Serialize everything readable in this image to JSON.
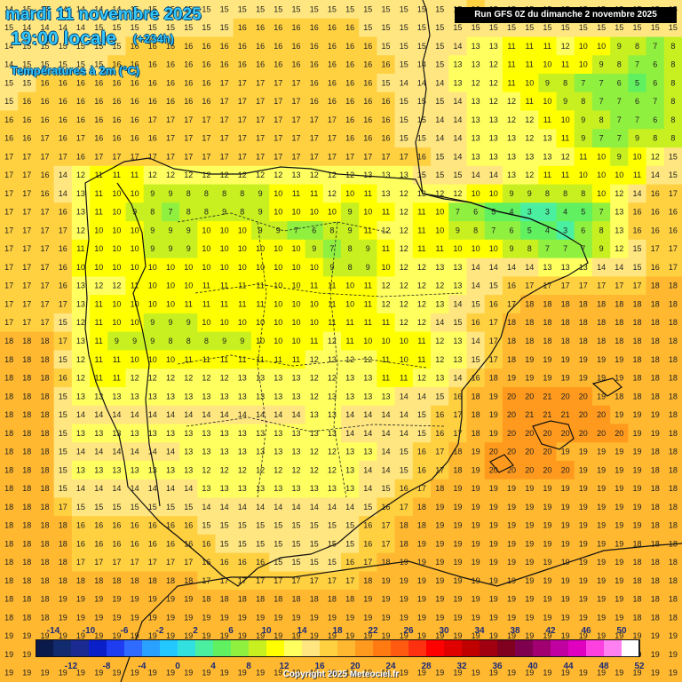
{
  "header": {
    "date": "mardi 11 novembre 2025",
    "time": "19:00 locale",
    "lead": "(+234h)",
    "variable": "Températures à 2m (°C)",
    "run": "Run GFS 0Z du dimanche 2 novembre 2025"
  },
  "copyright": "Copyright 2025 Meteociel.fr",
  "legend": {
    "unit": "°C",
    "step": 2,
    "min": -14,
    "max": 52,
    "top_labels": [
      "-14",
      "-10",
      "-6",
      "-2",
      "2",
      "6",
      "10",
      "14",
      "18",
      "22",
      "26",
      "30",
      "34",
      "38",
      "42",
      "46",
      "50"
    ],
    "bottom_labels": [
      "-12",
      "-8",
      "-4",
      "0",
      "4",
      "8",
      "12",
      "16",
      "20",
      "24",
      "28",
      "32",
      "36",
      "40",
      "44",
      "48",
      "52"
    ],
    "colors": [
      "#0a1a4a",
      "#122a6e",
      "#1a2a90",
      "#0a1fc8",
      "#1e3cf0",
      "#2f6bff",
      "#2aa0ff",
      "#22c8ff",
      "#33e0e0",
      "#4af0a0",
      "#60f060",
      "#90f040",
      "#c8f020",
      "#ffff00",
      "#ffff60",
      "#ffe680",
      "#ffd040",
      "#ffb830",
      "#ff9a1e",
      "#ff7a10",
      "#ff5a10",
      "#ff3010",
      "#ff0000",
      "#e00000",
      "#c00000",
      "#a00010",
      "#800020",
      "#800050",
      "#a00070",
      "#c000a0",
      "#e000c0",
      "#ff40e0",
      "#ff80f0",
      "#ffffff"
    ]
  },
  "map": {
    "cols": 38,
    "rows": 37,
    "grid": [
      "1415151414141415151515151515151515151515151515151515161515151515151515151515",
      "1514141414151515151515151516161616161616151515151515151515151515151515151515",
      "1415151515151516161616161616161616161616161515151514131311111112101009080708",
      "1415151515151616161616161616161616161616161615141513131211111011100908070608",
      "1515161616161616161616161717171717161616161514141413121211100908070706050608",
      "1516161616161616161616161717171717161616161615151514131212111009080707060708",
      "1616161616161616171717171717171717171716161615151414131312121110090807070608",
      "1616171617161616161717171717171717171716161615151414131313121311090707090808",
      "1717171716171717171717171717171717171717171717161514131313131312111009101215",
      "1717161412111111121212121212121213121212131313151515141413121111101010111415",
      "1717161413111010090908080808091011111210111312131212101009090808081012141617",
      "1717171613111009080708080908091010101009101112111007060504030304050713161616",
      "1717171712101010090909101010090907060809111212111009080706050403060813161616",
      "1717171611101010090909101010101010090708091112111110101009080707070912151717",
      "1717171610101010101010101010101010100908091012121313141414141313131414151617",
      "1717171613121211101010111111111010111110111212121213141516171717171717171818",
      "1717171713111010101011111111111010101110111212121314151617181818181818181818",
      "1717171512111010090909101010101010101111111112121415161718181818181818181818",
      "1818181713110909090808080909101010111211101010111213141718181818181818181818",
      "1818181512111110101011111111111111121312121110111213151718191919191919181818",
      "1818181612111112121212121213131313121213131111121314161819191919191919181818",
      "1818181513131313131313131313131313121313131314141516181920202120201918181818",
      "1818181514141414141414141414141414131314141414151617181920212121202019191918",
      "1818181513131313131313131313131313131314141414151617181920202020202020191918",
      "1818181514141414141413131313131313121213131415161718192020202019191919191818",
      "1818181513131313131313121212121212121213141415161718192020202020191919191818",
      "1818181514141414141414131313131313131313141516171819191919191919191919191818",
      "1818181715151515151515141414141414141414151617181919191919191919191919191818",
      "1818181816161616161616151515151515151515161718181919191919191919191919191818",
      "1818181816161616161616161515151515151515161718191919191919191919191919181818",
      "1818181817171717171717161616161515151516171819191919191919191919191919181818",
      "1818181818181818181818171717171717171717181919191919191919191919191919181818",
      "1818181919191919191919181818181818181818191919191919191919191919191919181818",
      "1818181919191919191919191919191919191919191919191919191919191919191919181818",
      "1919191919191919191919191919191919191919191919191919191919191919191919191919",
      "1919191919191919191919191919191919191919191919191919191919191919191919191919",
      "1919191919191919191919191919191919191919191919191919191919191919191919191919"
    ]
  }
}
